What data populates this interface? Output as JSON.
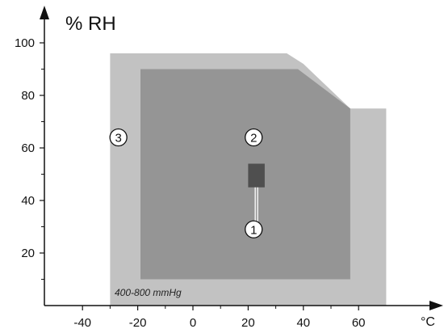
{
  "chart_data": {
    "type": "area",
    "ylabel": "% RH",
    "xunit": "°C",
    "annotation": "400-800 mmHg",
    "x_ticks": [
      -40,
      -20,
      0,
      20,
      40,
      60
    ],
    "y_ticks": [
      20,
      40,
      60,
      80,
      100
    ],
    "xlim": [
      -55,
      93
    ],
    "ylim": [
      0,
      108
    ],
    "regions": [
      {
        "name": "3",
        "color": "#c2c2c2",
        "polygon": [
          [
            -30,
            0
          ],
          [
            -30,
            96
          ],
          [
            34,
            96
          ],
          [
            40,
            92
          ],
          [
            57,
            75
          ],
          [
            70,
            75
          ],
          [
            70,
            0
          ]
        ]
      },
      {
        "name": "2",
        "color": "#959595",
        "polygon": [
          [
            -19,
            10
          ],
          [
            -19,
            90
          ],
          [
            38,
            90
          ],
          [
            57,
            75
          ],
          [
            57,
            10
          ]
        ]
      },
      {
        "name": "1",
        "color": "#4f4f4f",
        "polygon": [
          [
            20,
            45
          ],
          [
            20,
            54
          ],
          [
            26,
            54
          ],
          [
            26,
            45
          ]
        ]
      }
    ],
    "markers": [
      {
        "label": "3",
        "x": -27,
        "y": 64
      },
      {
        "label": "2",
        "x": 22,
        "y": 64
      },
      {
        "label": "1",
        "x": 22,
        "y": 29
      }
    ],
    "leader_line": {
      "x": 23,
      "from_y": 45,
      "to_y": 32
    }
  }
}
